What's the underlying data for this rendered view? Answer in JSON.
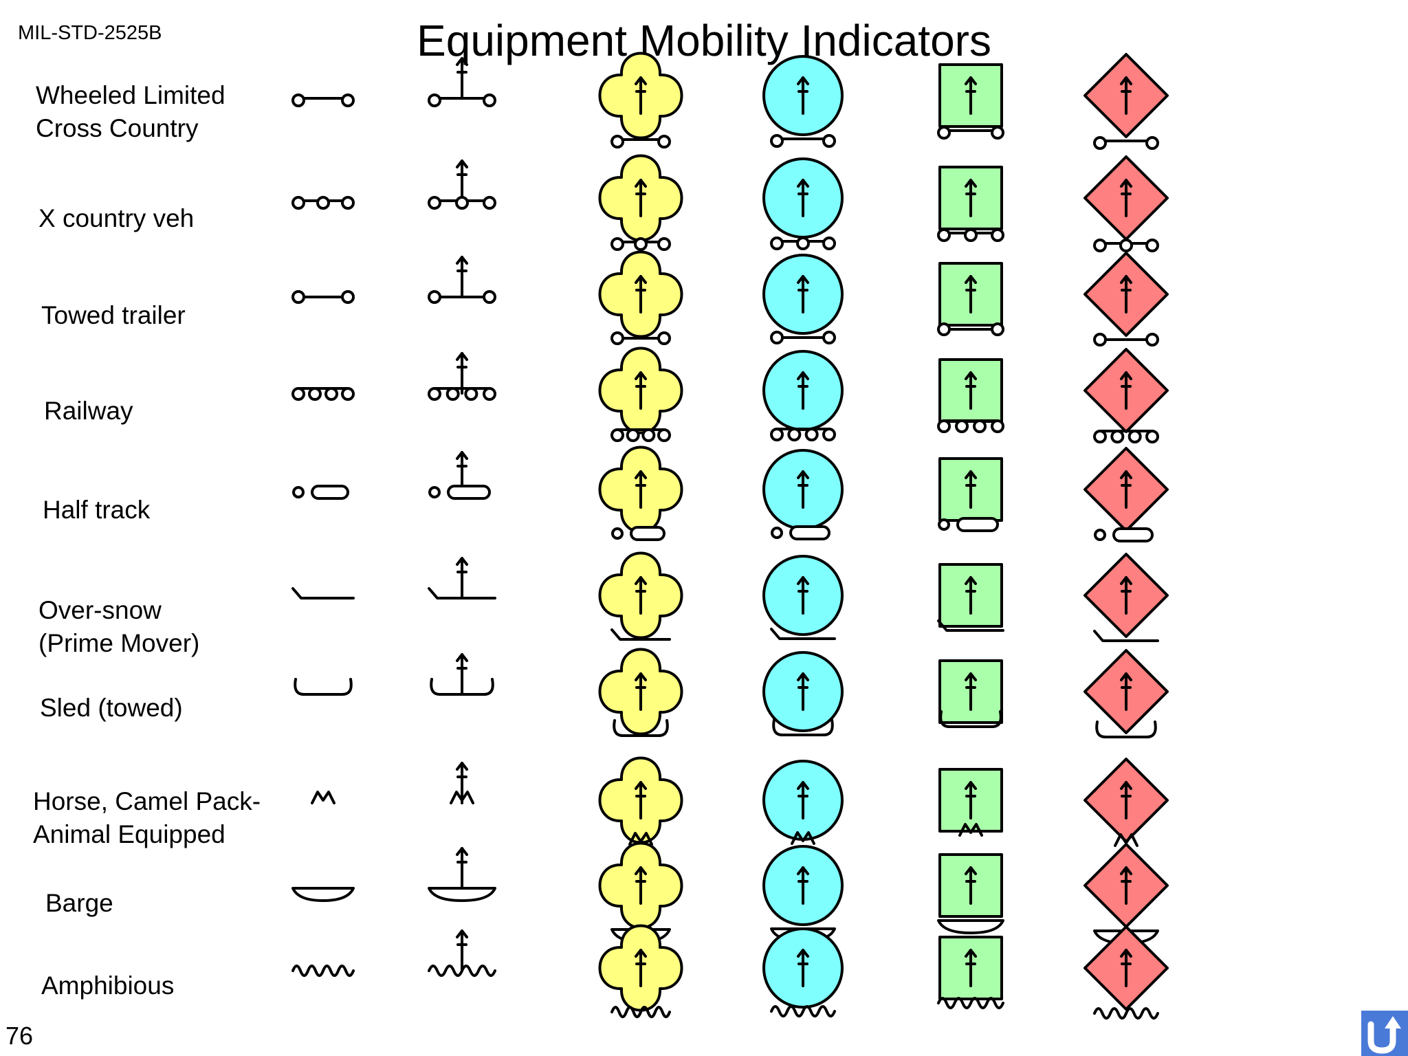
{
  "header": {
    "std_label": "MIL-STD-2525B",
    "title": "Equipment Mobility Indicators"
  },
  "footer": {
    "page_number": "76"
  },
  "nav": {
    "return_icon": "return-arrow-icon"
  },
  "colors": {
    "unknown_fill": "#ffff80",
    "friend_fill": "#80ffff",
    "neutral_fill": "#aaffaa",
    "hostile_fill": "#ff8080",
    "return_button": "#4a7ad8",
    "stroke": "#000000"
  },
  "frame_columns": [
    "unknown",
    "friend",
    "neutral",
    "hostile"
  ],
  "rows": [
    {
      "key": "wheeled-limited",
      "label_lines": [
        "Wheeled Limited",
        "Cross Country"
      ]
    },
    {
      "key": "x-country",
      "label_lines": [
        "X country veh"
      ]
    },
    {
      "key": "towed-trailer",
      "label_lines": [
        "Towed trailer"
      ]
    },
    {
      "key": "railway",
      "label_lines": [
        "Railway"
      ]
    },
    {
      "key": "half-track",
      "label_lines": [
        "Half track"
      ]
    },
    {
      "key": "over-snow",
      "label_lines": [
        "Over-snow",
        "(Prime Mover)"
      ]
    },
    {
      "key": "sled",
      "label_lines": [
        "Sled (towed)"
      ]
    },
    {
      "key": "pack-animal",
      "label_lines": [
        "Horse, Camel Pack-",
        "Animal Equipped"
      ]
    },
    {
      "key": "barge",
      "label_lines": [
        "Barge"
      ]
    },
    {
      "key": "amphibious",
      "label_lines": [
        "Amphibious"
      ]
    }
  ]
}
